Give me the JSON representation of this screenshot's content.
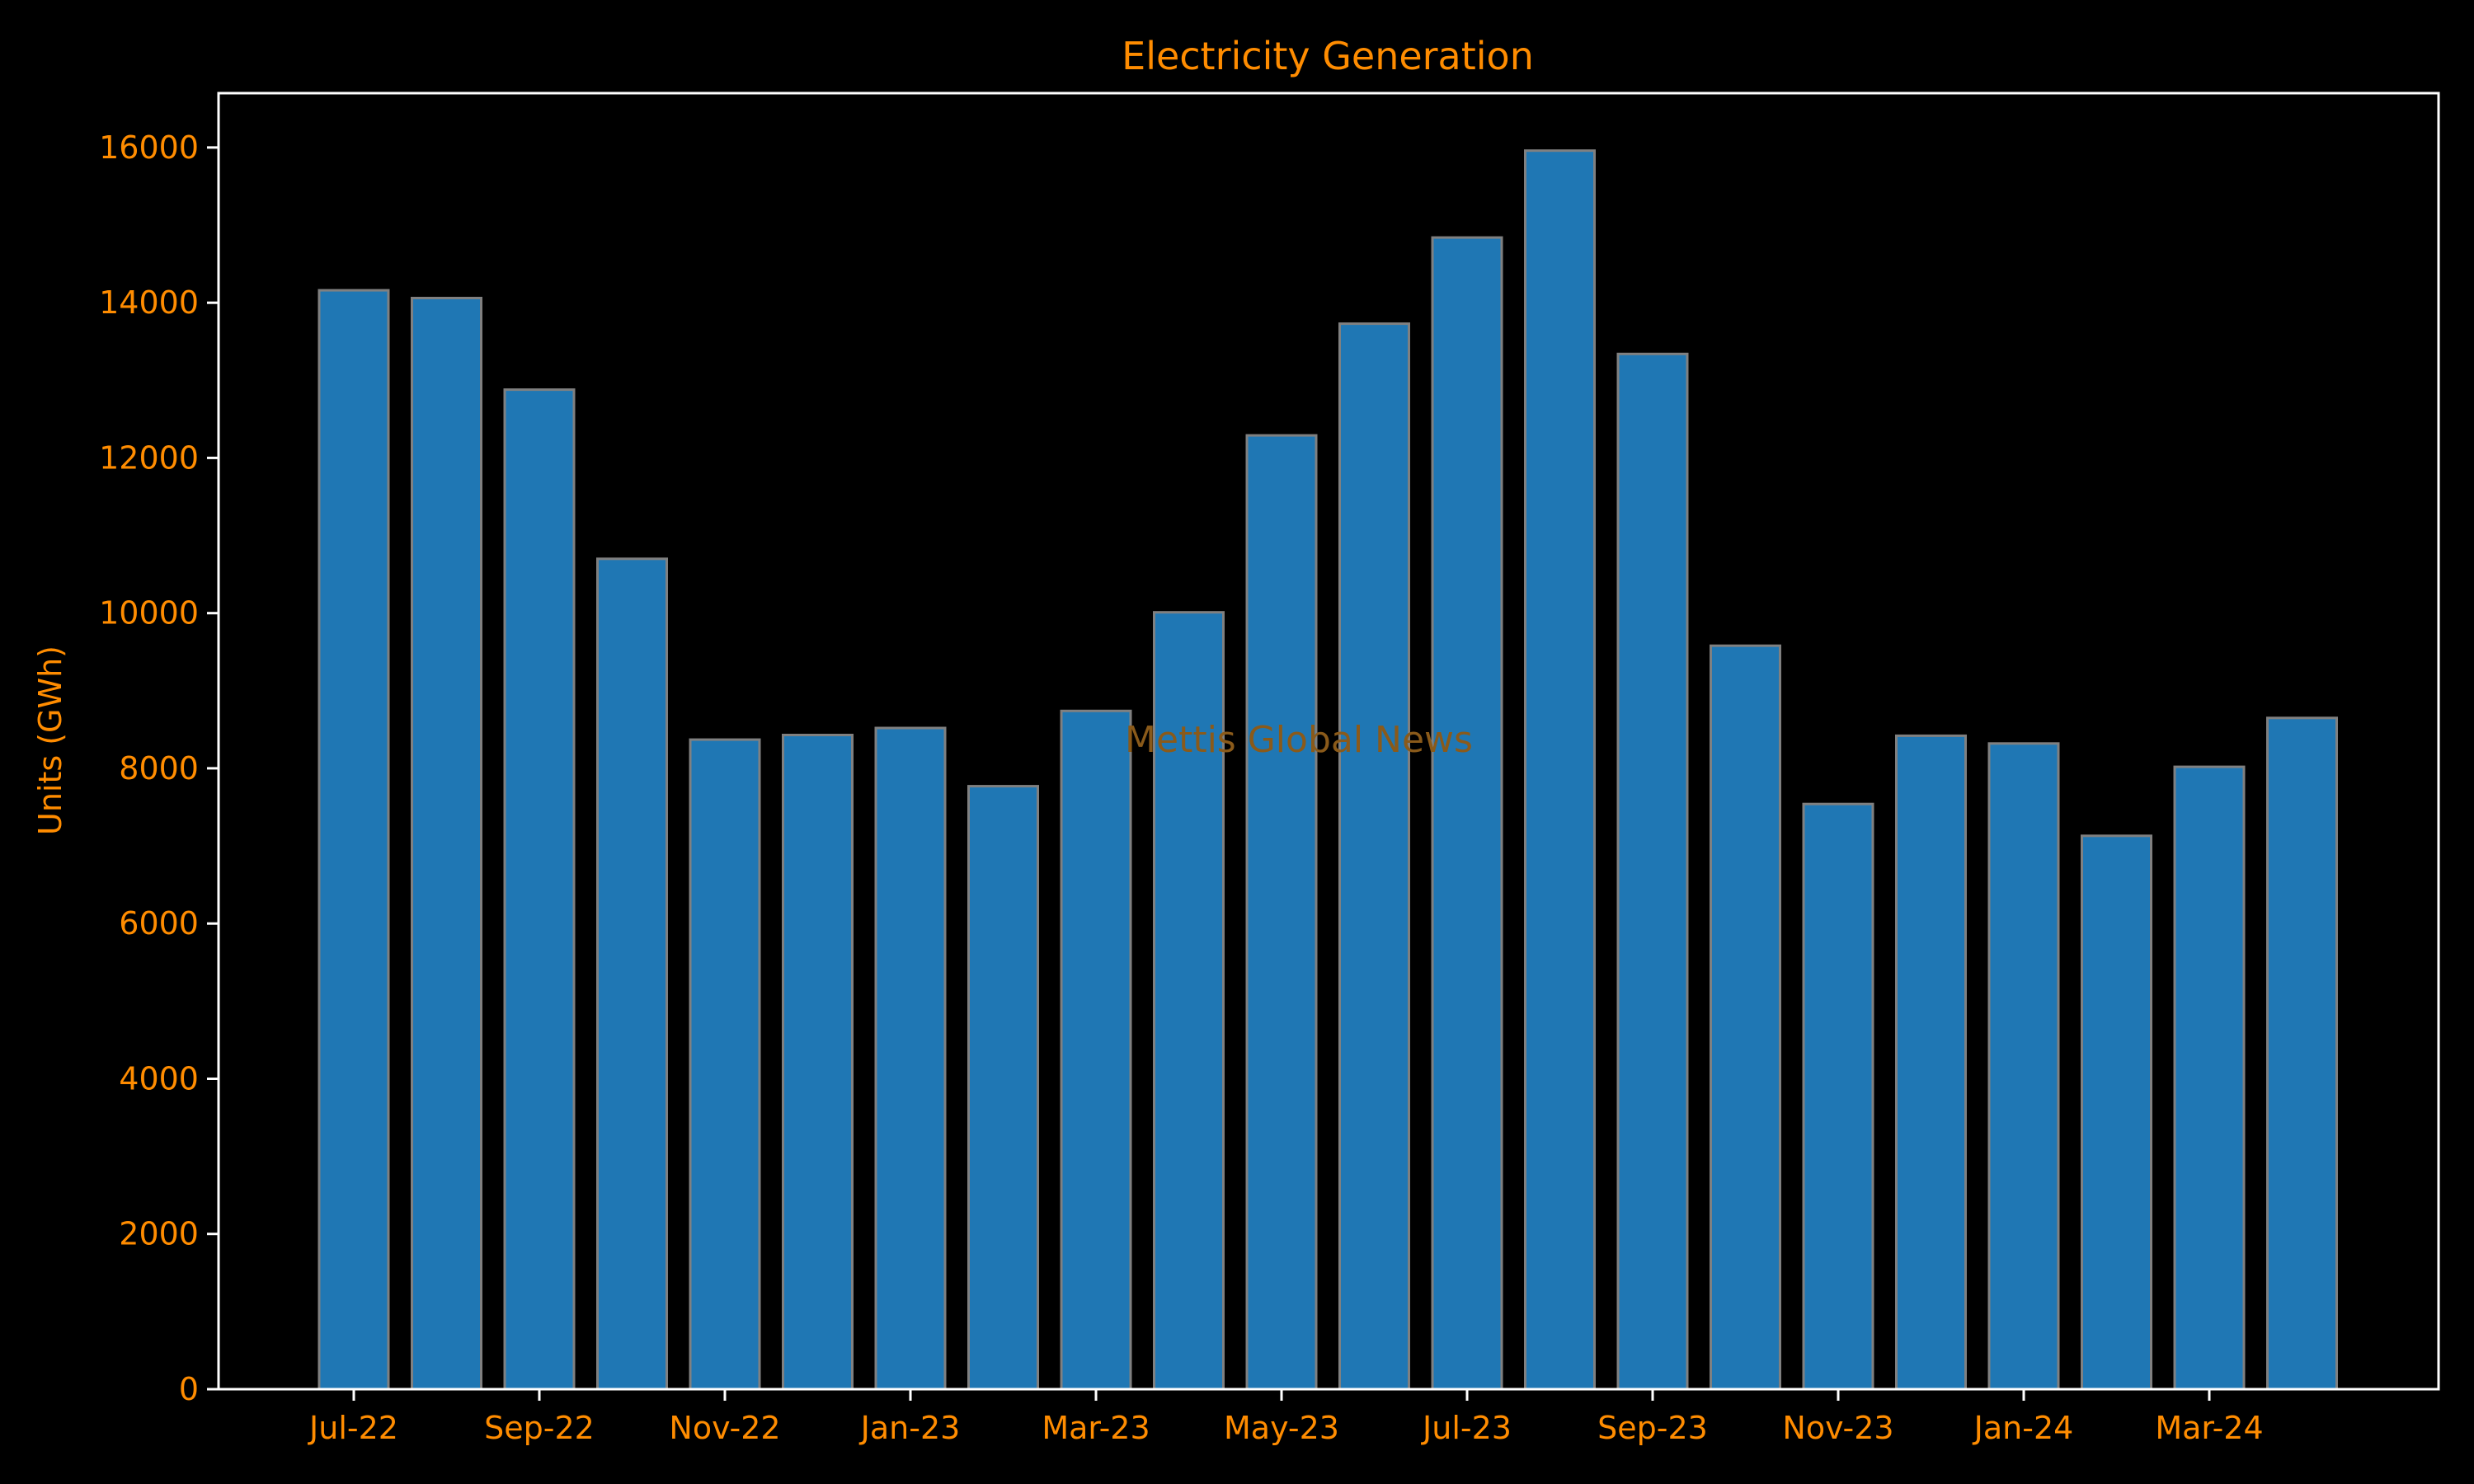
{
  "colors": {
    "background": "#000000",
    "text": "#ff8c00",
    "bar_fill": "#1f77b4",
    "bar_edge": "#808080",
    "frame": "#ffffff",
    "watermark": "#8a5a1a"
  },
  "watermark": "Mettis Global News",
  "chart_data": {
    "type": "bar",
    "title": "Electricity Generation",
    "xlabel": "",
    "ylabel": "Units (GWh)",
    "ylim": [
      0,
      16700
    ],
    "yticks": [
      0,
      2000,
      4000,
      6000,
      8000,
      10000,
      12000,
      14000,
      16000
    ],
    "ytick_labels": [
      "0",
      "2000",
      "4000",
      "6000",
      "8000",
      "10000",
      "12000",
      "14000",
      "16000"
    ],
    "xtick_labels": [
      "Jul-22",
      "Sep-22",
      "Nov-22",
      "Jan-23",
      "Mar-23",
      "May-23",
      "Jul-23",
      "Sep-23",
      "Nov-23",
      "Jan-24",
      "Mar-24"
    ],
    "categories": [
      "Jul-22",
      "Aug-22",
      "Sep-22",
      "Oct-22",
      "Nov-22",
      "Dec-22",
      "Jan-23",
      "Feb-23",
      "Mar-23",
      "Apr-23",
      "May-23",
      "Jun-23",
      "Jul-23",
      "Aug-23",
      "Sep-23",
      "Oct-23",
      "Nov-23",
      "Dec-23",
      "Jan-24",
      "Feb-24",
      "Mar-24",
      "Apr-24"
    ],
    "values": [
      14160,
      14060,
      12880,
      10700,
      8370,
      8430,
      8520,
      7770,
      8740,
      10010,
      12290,
      13730,
      14840,
      15960,
      13340,
      9580,
      7540,
      8420,
      8320,
      7130,
      8020,
      8650
    ],
    "grid": false,
    "legend": "none"
  }
}
